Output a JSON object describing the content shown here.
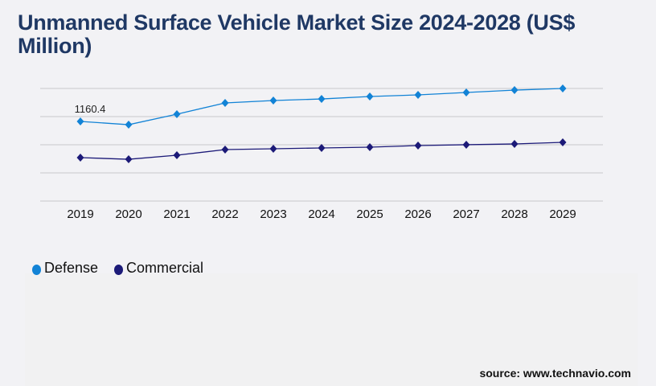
{
  "title": "Unmanned Surface Vehicle Market Size 2024-2028 (US$ Million)",
  "source": "source: www.technavio.com",
  "chart_data": {
    "type": "line",
    "title": "Unmanned Surface Vehicle Market Size 2024-2028 (US$ Million)",
    "xlabel": "",
    "ylabel": "",
    "categories": [
      "2019",
      "2020",
      "2021",
      "2022",
      "2023",
      "2024",
      "2025",
      "2026",
      "2027",
      "2028",
      "2029"
    ],
    "ylim": [
      0,
      1641
    ],
    "grid": true,
    "legend_position": "bottom-left",
    "series": [
      {
        "name": "Defense",
        "color": "#1283d6",
        "values": [
          1160.4,
          1113,
          1266,
          1430,
          1465,
          1488,
          1524,
          1547,
          1582,
          1617,
          1641
        ]
      },
      {
        "name": "Commercial",
        "color": "#1c1a78",
        "values": [
          633,
          609,
          668,
          750,
          762,
          774,
          785,
          809,
          821,
          832,
          856
        ]
      }
    ],
    "annotations": [
      "1160.4"
    ]
  }
}
